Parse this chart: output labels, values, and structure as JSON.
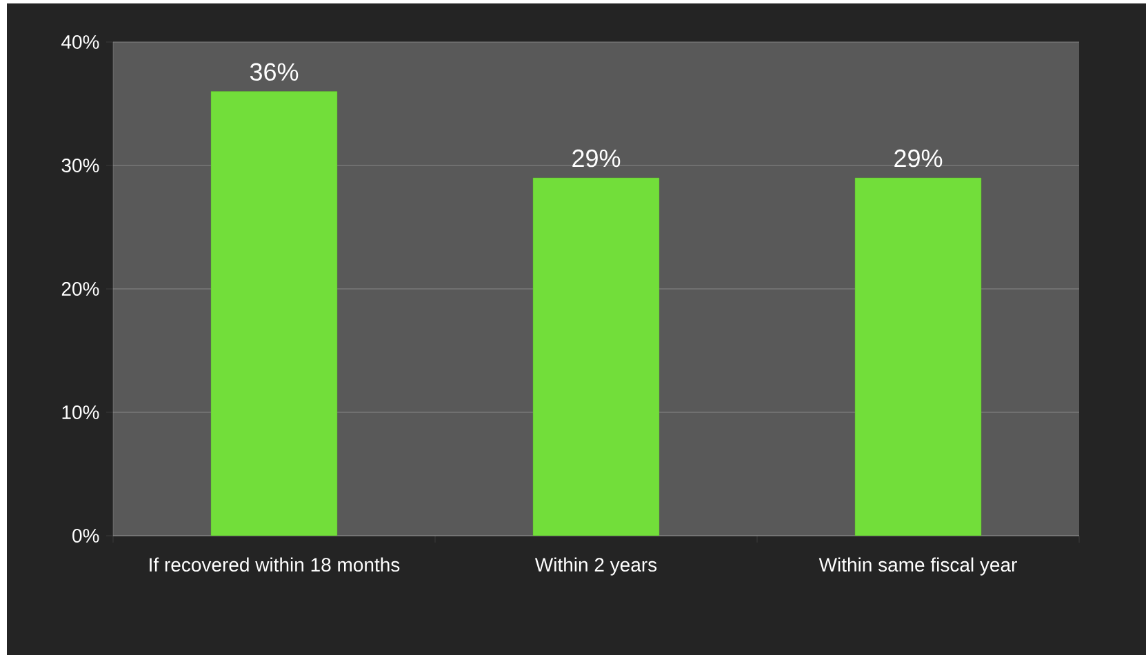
{
  "chart_data": {
    "type": "bar",
    "categories": [
      "If recovered within 18 months",
      "Within 2 years",
      "Within same fiscal year"
    ],
    "values": [
      36,
      29,
      29
    ],
    "color": "#72de3a",
    "value_labels": [
      "36%",
      "29%",
      "29%"
    ],
    "ylim": [
      0,
      40
    ],
    "yticks": [
      {
        "value": 0,
        "label": "0%"
      },
      {
        "value": 10,
        "label": "10%"
      },
      {
        "value": 20,
        "label": "20%"
      },
      {
        "value": 30,
        "label": "30%"
      },
      {
        "value": 40,
        "label": "40%"
      }
    ],
    "grid": "y"
  }
}
